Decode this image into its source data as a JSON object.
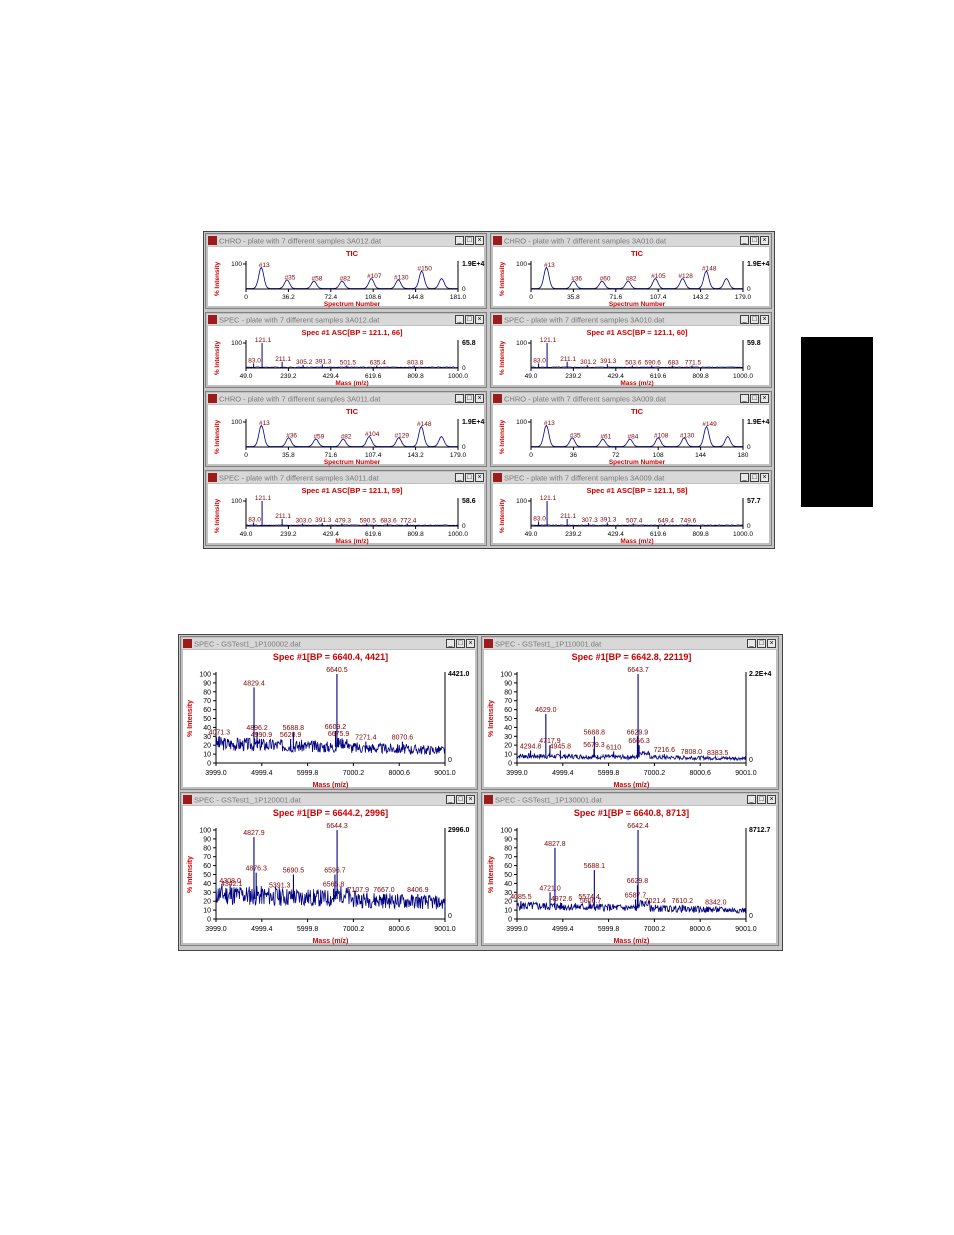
{
  "colors": {
    "label_red": "#cc0000",
    "trace_blue": "#000080",
    "tick_dark": "#000000",
    "peak_label": "#800000"
  },
  "icons": {
    "app": "app-icon",
    "minimize": "minimize-icon",
    "maximize": "maximize-icon",
    "close": "close-icon"
  },
  "top_windows": [
    {
      "title": "CHRO - plate with 7 different samples 3A012.dat",
      "kind": "chro",
      "header": "TIC",
      "ylabel": "% Intensity",
      "xlabel": "Spectrum Number",
      "ytop": "100",
      "ymax_label": "1.9E+4",
      "ticks": [
        "0",
        "36.2",
        "72.4",
        "108.6",
        "144.8",
        "181.0"
      ],
      "peaks": [
        {
          "x": 13,
          "y": 0.85,
          "label": "#13"
        },
        {
          "x": 35,
          "y": 0.35,
          "label": "#35"
        },
        {
          "x": 58,
          "y": 0.3,
          "label": "#58"
        },
        {
          "x": 82,
          "y": 0.3,
          "label": "#82"
        },
        {
          "x": 107,
          "y": 0.4,
          "label": "#107"
        },
        {
          "x": 130,
          "y": 0.35,
          "label": "#130"
        },
        {
          "x": 150,
          "y": 0.7,
          "label": "#150"
        },
        {
          "x": 167,
          "y": 0.4,
          "label": ""
        }
      ],
      "xmin": 0,
      "xmax": 181
    },
    {
      "title": "CHRO - plate with 7 different samples 3A010.dat",
      "kind": "chro",
      "header": "TIC",
      "ylabel": "% Intensity",
      "xlabel": "Spectrum Number",
      "ytop": "100",
      "ymax_label": "1.9E+4",
      "ticks": [
        "0",
        "35.8",
        "71.6",
        "107.4",
        "143.2",
        "179.0"
      ],
      "peaks": [
        {
          "x": 13,
          "y": 0.85,
          "label": "#13"
        },
        {
          "x": 36,
          "y": 0.3,
          "label": "#36"
        },
        {
          "x": 60,
          "y": 0.3,
          "label": "#60"
        },
        {
          "x": 82,
          "y": 0.3,
          "label": "#82"
        },
        {
          "x": 105,
          "y": 0.4,
          "label": "#105"
        },
        {
          "x": 128,
          "y": 0.4,
          "label": "#128"
        },
        {
          "x": 148,
          "y": 0.7,
          "label": "#148"
        },
        {
          "x": 165,
          "y": 0.4,
          "label": ""
        }
      ],
      "xmin": 0,
      "xmax": 179
    },
    {
      "title": "SPEC - plate with 7 different samples 3A012.dat",
      "kind": "spec",
      "header": "Spec #1 ASC[BP = 121.1, 66]",
      "ylabel": "% Intensity",
      "xlabel": "Mass (m/z)",
      "ytop": "100",
      "ymax_label": "65.8",
      "ticks": [
        "49.0",
        "239.2",
        "429.4",
        "619.6",
        "809.8",
        "1000.0"
      ],
      "peaks": [
        {
          "x": 83,
          "y": 0.18,
          "label": "83.0"
        },
        {
          "x": 121.1,
          "y": 1.0,
          "label": "121.1"
        },
        {
          "x": 211.1,
          "y": 0.25,
          "label": "211.1"
        },
        {
          "x": 305.2,
          "y": 0.12,
          "label": "305.2"
        },
        {
          "x": 391.3,
          "y": 0.14,
          "label": "391.3"
        },
        {
          "x": 501.5,
          "y": 0.1,
          "label": "501.5"
        },
        {
          "x": 635.4,
          "y": 0.1,
          "label": "635.4"
        },
        {
          "x": 803.8,
          "y": 0.1,
          "label": "803.8"
        }
      ],
      "xmin": 49,
      "xmax": 1000
    },
    {
      "title": "SPEC - plate with 7 different samples 3A010.dat",
      "kind": "spec",
      "header": "Spec #1 ASC[BP = 121.1, 60]",
      "ylabel": "% Intensity",
      "xlabel": "Mass (m/z)",
      "ytop": "100",
      "ymax_label": "59.8",
      "ticks": [
        "49.0",
        "239.2",
        "429.4",
        "619.6",
        "809.8",
        "1000.0"
      ],
      "peaks": [
        {
          "x": 83,
          "y": 0.18,
          "label": "83.0"
        },
        {
          "x": 121.1,
          "y": 1.0,
          "label": "121.1"
        },
        {
          "x": 211.1,
          "y": 0.25,
          "label": "211.1"
        },
        {
          "x": 301.2,
          "y": 0.12,
          "label": "301.2"
        },
        {
          "x": 391.3,
          "y": 0.16,
          "label": "391.3"
        },
        {
          "x": 503.6,
          "y": 0.1,
          "label": "503.6"
        },
        {
          "x": 590.6,
          "y": 0.1,
          "label": "590.6"
        },
        {
          "x": 683,
          "y": 0.1,
          "label": "683"
        },
        {
          "x": 771.5,
          "y": 0.1,
          "label": "771.5"
        }
      ],
      "xmin": 49,
      "xmax": 1000
    },
    {
      "title": "CHRO - plate with 7 different samples 3A011.dat",
      "kind": "chro",
      "header": "TIC",
      "ylabel": "% Intensity",
      "xlabel": "Spectrum Number",
      "ytop": "100",
      "ymax_label": "1.9E+4",
      "ticks": [
        "0",
        "35.8",
        "71.6",
        "107.4",
        "143.2",
        "179.0"
      ],
      "peaks": [
        {
          "x": 13,
          "y": 0.85,
          "label": "#13"
        },
        {
          "x": 36,
          "y": 0.35,
          "label": "#36"
        },
        {
          "x": 59,
          "y": 0.3,
          "label": "#59"
        },
        {
          "x": 82,
          "y": 0.3,
          "label": "#82"
        },
        {
          "x": 104,
          "y": 0.4,
          "label": "#104"
        },
        {
          "x": 129,
          "y": 0.35,
          "label": "#129"
        },
        {
          "x": 148,
          "y": 0.8,
          "label": "#148"
        },
        {
          "x": 165,
          "y": 0.4,
          "label": ""
        }
      ],
      "xmin": 0,
      "xmax": 179
    },
    {
      "title": "CHRO - plate with 7 different samples 3A009.dat",
      "kind": "chro",
      "header": "TIC",
      "ylabel": "% Intensity",
      "xlabel": "Spectrum Number",
      "ytop": "100",
      "ymax_label": "1.9E+4",
      "ticks": [
        "0",
        "36",
        "72",
        "108",
        "144",
        "180"
      ],
      "peaks": [
        {
          "x": 13,
          "y": 0.85,
          "label": "#13"
        },
        {
          "x": 35,
          "y": 0.35,
          "label": "#35"
        },
        {
          "x": 61,
          "y": 0.3,
          "label": "#61"
        },
        {
          "x": 84,
          "y": 0.3,
          "label": "#84"
        },
        {
          "x": 108,
          "y": 0.35,
          "label": "#108"
        },
        {
          "x": 130,
          "y": 0.35,
          "label": "#130"
        },
        {
          "x": 149,
          "y": 0.8,
          "label": "#149"
        },
        {
          "x": 167,
          "y": 0.4,
          "label": ""
        }
      ],
      "xmin": 0,
      "xmax": 180
    },
    {
      "title": "SPEC - plate with 7 different samples 3A011.dat",
      "kind": "spec",
      "header": "Spec #1 ASC[BP = 121.1, 59]",
      "ylabel": "% Intensity",
      "xlabel": "Mass (m/z)",
      "ytop": "100",
      "ymax_label": "58.6",
      "ticks": [
        "49.0",
        "239.2",
        "429.4",
        "619.6",
        "809.8",
        "1000.0"
      ],
      "peaks": [
        {
          "x": 83,
          "y": 0.14,
          "label": "83.0"
        },
        {
          "x": 121.1,
          "y": 1.0,
          "label": "121.1"
        },
        {
          "x": 211.1,
          "y": 0.28,
          "label": "211.1"
        },
        {
          "x": 303,
          "y": 0.1,
          "label": "303.0"
        },
        {
          "x": 391.3,
          "y": 0.12,
          "label": "391.3"
        },
        {
          "x": 479.3,
          "y": 0.1,
          "label": "479.3"
        },
        {
          "x": 590.5,
          "y": 0.1,
          "label": "590.5"
        },
        {
          "x": 683.6,
          "y": 0.1,
          "label": "683.6"
        },
        {
          "x": 772.4,
          "y": 0.1,
          "label": "772.4"
        }
      ],
      "xmin": 49,
      "xmax": 1000
    },
    {
      "title": "SPEC - plate with 7 different samples 3A009.dat",
      "kind": "spec",
      "header": "Spec #1 ASC[BP = 121.1, 58]",
      "ylabel": "% Intensity",
      "xlabel": "Mass (m/z)",
      "ytop": "100",
      "ymax_label": "57.7",
      "ticks": [
        "49.0",
        "239.2",
        "429.4",
        "619.6",
        "809.8",
        "1000.0"
      ],
      "peaks": [
        {
          "x": 83,
          "y": 0.18,
          "label": "83.0"
        },
        {
          "x": 121.1,
          "y": 1.0,
          "label": "121.1"
        },
        {
          "x": 211.1,
          "y": 0.28,
          "label": "211.1"
        },
        {
          "x": 307.3,
          "y": 0.12,
          "label": "307.3"
        },
        {
          "x": 391.3,
          "y": 0.14,
          "label": "391.3"
        },
        {
          "x": 507.4,
          "y": 0.1,
          "label": "507.4"
        },
        {
          "x": 649.4,
          "y": 0.1,
          "label": "649.4"
        },
        {
          "x": 749.6,
          "y": 0.1,
          "label": "749.6"
        }
      ],
      "xmin": 49,
      "xmax": 1000
    }
  ],
  "bottom_windows": [
    {
      "title": "SPEC - GSTest1_1P100002.dat",
      "kind": "bigspec",
      "header": "Spec #1[BP = 6640.4, 4421]",
      "ylabel": "% Intensity",
      "xlabel": "Mass (m/z)",
      "ymax_label": "4421.0",
      "yticks": [
        "0",
        "10",
        "20",
        "30",
        "40",
        "50",
        "60",
        "70",
        "80",
        "90",
        "100"
      ],
      "ticks": [
        "3999.0",
        "4999.4",
        "5999.8",
        "7000.2",
        "8000.6",
        "9001.0"
      ],
      "baseline": 0.22,
      "noise": 0.08,
      "seed": 3,
      "peaks": [
        {
          "x": 4071.3,
          "y": 0.3,
          "label": "4071.3"
        },
        {
          "x": 4829.4,
          "y": 0.85,
          "label": "4829.4"
        },
        {
          "x": 4896.2,
          "y": 0.35,
          "label": "4896.2"
        },
        {
          "x": 4990.9,
          "y": 0.27,
          "label": "4990.9"
        },
        {
          "x": 5628.9,
          "y": 0.27,
          "label": "5628.9"
        },
        {
          "x": 5688.8,
          "y": 0.35,
          "label": "5688.8"
        },
        {
          "x": 6640.5,
          "y": 1.0,
          "label": "6640.5"
        },
        {
          "x": 6609.2,
          "y": 0.36,
          "label": "6609.2"
        },
        {
          "x": 6675.9,
          "y": 0.28,
          "label": "6675.9"
        },
        {
          "x": 7271.4,
          "y": 0.24,
          "label": "7271.4"
        },
        {
          "x": 8070.6,
          "y": 0.24,
          "label": "8070.6"
        }
      ],
      "xmin": 3999,
      "xmax": 9001
    },
    {
      "title": "SPEC - GSTest1_1P110001.dat",
      "kind": "bigspec",
      "header": "Spec #1[BP = 6642.8, 22119]",
      "ylabel": "% Intensity",
      "xlabel": "Mass (m/z)",
      "ymax_label": "2.2E+4",
      "yticks": [
        "0",
        "10",
        "20",
        "30",
        "40",
        "50",
        "60",
        "70",
        "80",
        "90",
        "100"
      ],
      "ticks": [
        "3999.0",
        "4999.4",
        "5999.8",
        "7000.2",
        "8000.6",
        "9001.0"
      ],
      "baseline": 0.08,
      "noise": 0.03,
      "seed": 7,
      "peaks": [
        {
          "x": 4294.8,
          "y": 0.14,
          "label": "4294.8"
        },
        {
          "x": 4629.0,
          "y": 0.55,
          "label": "4629.0"
        },
        {
          "x": 4717.9,
          "y": 0.2,
          "label": "4717.9"
        },
        {
          "x": 4945.8,
          "y": 0.14,
          "label": "4945.8"
        },
        {
          "x": 5679.3,
          "y": 0.16,
          "label": "5679.3"
        },
        {
          "x": 5688.8,
          "y": 0.3,
          "label": "5688.8"
        },
        {
          "x": 6110,
          "y": 0.13,
          "label": "6110"
        },
        {
          "x": 6643.7,
          "y": 1.0,
          "label": "6643.7"
        },
        {
          "x": 6629.9,
          "y": 0.3,
          "label": "6629.9"
        },
        {
          "x": 6666.3,
          "y": 0.2,
          "label": "6666.3"
        },
        {
          "x": 7216.6,
          "y": 0.1,
          "label": "7216.6"
        },
        {
          "x": 7808.0,
          "y": 0.08,
          "label": "7808.0"
        },
        {
          "x": 8383.5,
          "y": 0.07,
          "label": "8383.5"
        }
      ],
      "xmin": 3999,
      "xmax": 9001
    },
    {
      "title": "SPEC - GSTest1_1P120001.dat",
      "kind": "bigspec",
      "header": "Spec #1[BP = 6644.2, 2996]",
      "ylabel": "% Intensity",
      "xlabel": "Mass (m/z)",
      "ymax_label": "2996.0",
      "yticks": [
        "0",
        "10",
        "20",
        "30",
        "40",
        "50",
        "60",
        "70",
        "80",
        "90",
        "100"
      ],
      "ticks": [
        "3999.0",
        "4999.4",
        "5999.8",
        "7000.2",
        "8000.6",
        "9001.0"
      ],
      "baseline": 0.28,
      "noise": 0.12,
      "seed": 11,
      "peaks": [
        {
          "x": 4308,
          "y": 0.38,
          "label": "4308.0"
        },
        {
          "x": 4342.1,
          "y": 0.35,
          "label": "4342.1"
        },
        {
          "x": 4827.9,
          "y": 0.92,
          "label": "4827.9"
        },
        {
          "x": 4876.3,
          "y": 0.52,
          "label": "4876.3"
        },
        {
          "x": 5391.3,
          "y": 0.33,
          "label": "5391.3"
        },
        {
          "x": 5690.5,
          "y": 0.5,
          "label": "5690.5"
        },
        {
          "x": 6644.3,
          "y": 1.0,
          "label": "6644.3"
        },
        {
          "x": 6596.7,
          "y": 0.5,
          "label": "6596.7"
        },
        {
          "x": 6566.8,
          "y": 0.34,
          "label": "6566.8"
        },
        {
          "x": 7107.9,
          "y": 0.28,
          "label": "7107.9"
        },
        {
          "x": 7667.0,
          "y": 0.28,
          "label": "7667.0"
        },
        {
          "x": 8406.9,
          "y": 0.28,
          "label": "8406.9"
        }
      ],
      "xmin": 3999,
      "xmax": 9001
    },
    {
      "title": "SPEC - GSTest1_1P130001.dat",
      "kind": "bigspec",
      "header": "Spec #1[BP = 6640.8, 8713]",
      "ylabel": "% Intensity",
      "xlabel": "Mass (m/z)",
      "ymax_label": "8712.7",
      "yticks": [
        "0",
        "10",
        "20",
        "30",
        "40",
        "50",
        "60",
        "70",
        "80",
        "90",
        "100"
      ],
      "ticks": [
        "3999.0",
        "4999.4",
        "5999.8",
        "7000.2",
        "8000.6",
        "9001.0"
      ],
      "baseline": 0.15,
      "noise": 0.05,
      "seed": 5,
      "peaks": [
        {
          "x": 4085.5,
          "y": 0.2,
          "label": "4085.5"
        },
        {
          "x": 4721.0,
          "y": 0.3,
          "label": "4721.0"
        },
        {
          "x": 4827.8,
          "y": 0.8,
          "label": "4827.8"
        },
        {
          "x": 4972.6,
          "y": 0.18,
          "label": "4972.6"
        },
        {
          "x": 5574.4,
          "y": 0.2,
          "label": "5574.4"
        },
        {
          "x": 5606.7,
          "y": 0.16,
          "label": "5606.7"
        },
        {
          "x": 5688.1,
          "y": 0.55,
          "label": "5688.1"
        },
        {
          "x": 6642.4,
          "y": 1.0,
          "label": "6642.4"
        },
        {
          "x": 6629.8,
          "y": 0.38,
          "label": "6629.8"
        },
        {
          "x": 6587.7,
          "y": 0.22,
          "label": "6587.7"
        },
        {
          "x": 7021.4,
          "y": 0.16,
          "label": "7021.4"
        },
        {
          "x": 7610.2,
          "y": 0.16,
          "label": "7610.2"
        },
        {
          "x": 8342.0,
          "y": 0.14,
          "label": "8342.0"
        }
      ],
      "xmin": 3999,
      "xmax": 9001
    }
  ]
}
